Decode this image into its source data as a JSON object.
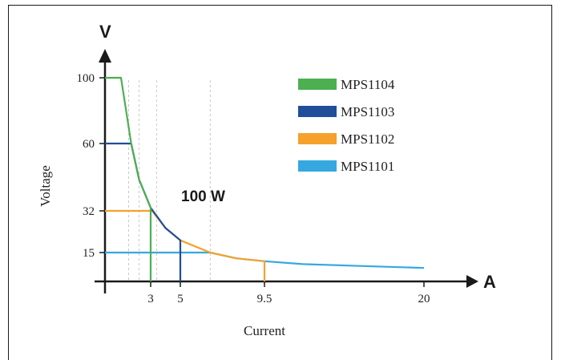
{
  "chart_data": {
    "type": "line",
    "xlabel": "Current",
    "ylabel": "Voltage",
    "x_axis_letter": "A",
    "y_axis_letter": "V",
    "power_label": "100 W",
    "x_ticks": [
      "3",
      "5",
      "9.5",
      "20"
    ],
    "y_ticks": [
      "100",
      "60",
      "32",
      "15"
    ],
    "legend_position": "top-right",
    "grid": false,
    "series": [
      {
        "name": "MPS1104",
        "color": "#4caf50",
        "max_voltage": 100,
        "max_current": 3,
        "points": [
          [
            1,
            100
          ],
          [
            1.67,
            60
          ],
          [
            2.2,
            45
          ],
          [
            3,
            33.3
          ],
          [
            3,
            0
          ]
        ]
      },
      {
        "name": "MPS1103",
        "color": "#1f4e9a",
        "max_voltage": 60,
        "max_current": 5,
        "points": [
          [
            1.67,
            60
          ],
          [
            2.2,
            45
          ],
          [
            3,
            33.3
          ],
          [
            4,
            25
          ],
          [
            5,
            20
          ],
          [
            5,
            0
          ]
        ]
      },
      {
        "name": "MPS1102",
        "color": "#f5a12b",
        "max_voltage": 32,
        "max_current": 9.5,
        "points": [
          [
            3.1,
            32
          ],
          [
            4,
            25
          ],
          [
            5,
            20
          ],
          [
            6.6,
            15
          ],
          [
            8,
            12
          ],
          [
            9.5,
            10.5
          ],
          [
            9.5,
            0
          ]
        ]
      },
      {
        "name": "MPS1101",
        "color": "#35a8e0",
        "max_voltage": 15,
        "max_current": 20,
        "points": [
          [
            6.6,
            15
          ],
          [
            8,
            12
          ],
          [
            9.5,
            10.5
          ],
          [
            12,
            9
          ],
          [
            16,
            8
          ],
          [
            20,
            7
          ]
        ]
      }
    ]
  }
}
